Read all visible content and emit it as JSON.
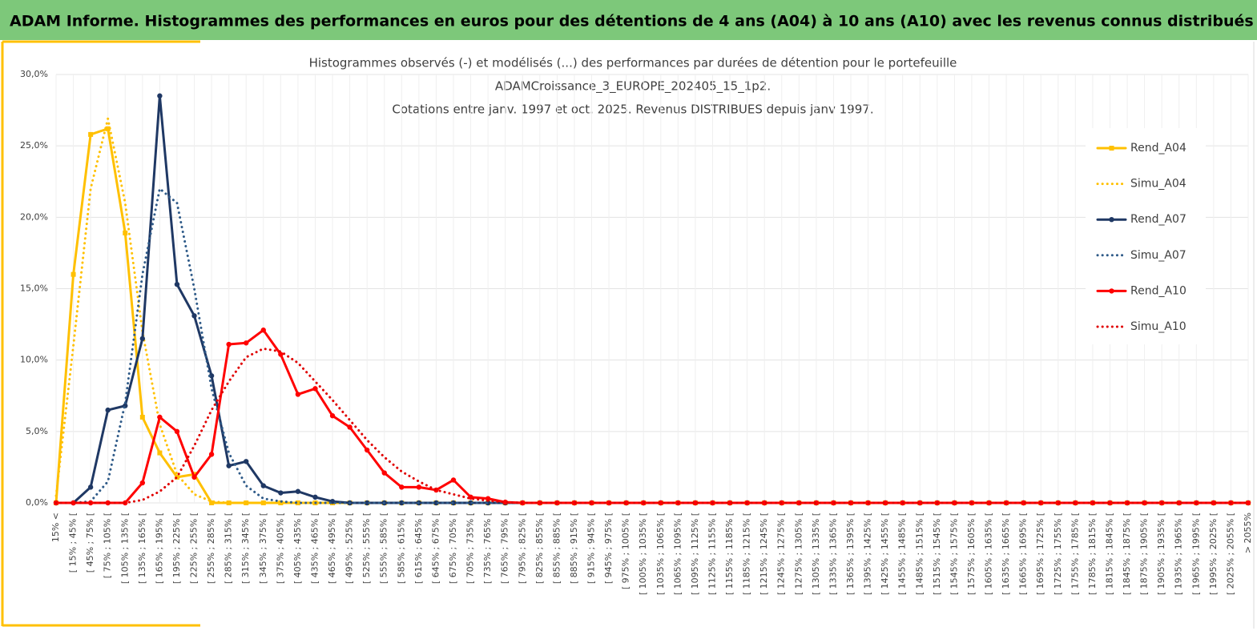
{
  "header": {
    "title": "ADAM Informe. Histogrammes des performances en euros pour des détentions de 4 ans (A04) à 10 ans (A10) avec les revenus connus distribués"
  },
  "chart_data": {
    "type": "line",
    "title": [
      "Histogrammes observés (-) et modélisés (...) des performances par durées de détention pour le portefeuille",
      "ADAMCroissance_3_EUROPE_202405_15_1p2.",
      "Cotations entre janv. 1997 et oct. 2025. Revenus DISTRIBUES depuis janv 1997."
    ],
    "categories": [
      "15% <",
      "[ 15% ; 45% [",
      "[ 45% ; 75% [",
      "[ 75% ; 105% [",
      "[ 105% ; 135% [",
      "[ 135% ; 165% [",
      "[ 165% ; 195% [",
      "[ 195% ; 225% [",
      "[ 225% ; 255% [",
      "[ 255% ; 285% [",
      "[ 285% ; 315% [",
      "[ 315% ; 345% [",
      "[ 345% ; 375% [",
      "[ 375% ; 405% [",
      "[ 405% ; 435% [",
      "[ 435% ; 465% [",
      "[ 465% ; 495% [",
      "[ 495% ; 525% [",
      "[ 525% ; 555% [",
      "[ 555% ; 585% [",
      "[ 585% ; 615% [",
      "[ 615% ; 645% [",
      "[ 645% ; 675% [",
      "[ 675% ; 705% [",
      "[ 705% ; 735% [",
      "[ 735% ; 765% [",
      "[ 765% ; 795% [",
      "[ 795% ; 825% [",
      "[ 825% ; 855% [",
      "[ 855% ; 885% [",
      "[ 885% ; 915% [",
      "[ 915% ; 945% [",
      "[ 945% ; 975% [",
      "[ 975% ; 1005% [",
      "[ 1005% ; 1035% [",
      "[ 1035% ; 1065% [",
      "[ 1065% ; 1095% [",
      "[ 1095% ; 1125% [",
      "[ 1125% ; 1155% [",
      "[ 1155% ; 1185% [",
      "[ 1185% ; 1215% [",
      "[ 1215% ; 1245% [",
      "[ 1245% ; 1275% [",
      "[ 1275% ; 1305% [",
      "[ 1305% ; 1335% [",
      "[ 1335% ; 1365% [",
      "[ 1365% ; 1395% [",
      "[ 1395% ; 1425% [",
      "[ 1425% ; 1455% [",
      "[ 1455% ; 1485% [",
      "[ 1485% ; 1515% [",
      "[ 1515% ; 1545% [",
      "[ 1545% ; 1575% [",
      "[ 1575% ; 1605% [",
      "[ 1605% ; 1635% [",
      "[ 1635% ; 1665% [",
      "[ 1665% ; 1695% [",
      "[ 1695% ; 1725% [",
      "[ 1725% ; 1755% [",
      "[ 1755% ; 1785% [",
      "[ 1785% ; 1815% [",
      "[ 1815% ; 1845% [",
      "[ 1845% ; 1875% [",
      "[ 1875% ; 1905% [",
      "[ 1905% ; 1935% [",
      "[ 1935% ; 1965% [",
      "[ 1965% ; 1995% [",
      "[ 1995% ; 2025% [",
      "[ 2025% ; 2055% [",
      "> 2055%"
    ],
    "ylim": [
      0,
      30
    ],
    "yticks": [
      {
        "value": 0,
        "label": "0,0%"
      },
      {
        "value": 5,
        "label": "5,0%"
      },
      {
        "value": 10,
        "label": "10,0%"
      },
      {
        "value": 15,
        "label": "15,0%"
      },
      {
        "value": 20,
        "label": "20,0%"
      },
      {
        "value": 25,
        "label": "25,0%"
      },
      {
        "value": 30,
        "label": "30,0%"
      }
    ],
    "grid": true,
    "legend": "right",
    "series": [
      {
        "name": "Rend_A04",
        "color": "#ffc000",
        "style": "solid",
        "marker": "square",
        "values": [
          0,
          16,
          25.8,
          26.2,
          18.9,
          6.0,
          3.5,
          1.8,
          2.0,
          0,
          0,
          0,
          0,
          0,
          0,
          0,
          0,
          0,
          0,
          0,
          0,
          0,
          0,
          0,
          0,
          0,
          0,
          0,
          0,
          0,
          0,
          0,
          0,
          0,
          0,
          0,
          0,
          0,
          0,
          0,
          0,
          0,
          0,
          0,
          0,
          0,
          0,
          0,
          0,
          0,
          0,
          0,
          0,
          0,
          0,
          0,
          0,
          0,
          0,
          0,
          0,
          0,
          0,
          0,
          0,
          0,
          0,
          0,
          0,
          0
        ]
      },
      {
        "name": "Simu_A04",
        "color": "#ffc000",
        "style": "dotted",
        "values": [
          0.5,
          11,
          22,
          26.9,
          21,
          12,
          5.5,
          2,
          0.6,
          0.1,
          0,
          0,
          0,
          0,
          0,
          0,
          0,
          0,
          0,
          0,
          0,
          0,
          0,
          0,
          0,
          0,
          0,
          0,
          0,
          0,
          0,
          0,
          0,
          0,
          0,
          0,
          0,
          0,
          0,
          0,
          0,
          0,
          0,
          0,
          0,
          0,
          0,
          0,
          0,
          0,
          0,
          0,
          0,
          0,
          0,
          0,
          0,
          0,
          0,
          0,
          0,
          0,
          0,
          0,
          0,
          0,
          0,
          0,
          0,
          0
        ]
      },
      {
        "name": "Rend_A07",
        "color": "#1f3864",
        "style": "solid",
        "marker": "circle",
        "values": [
          0,
          0,
          1.1,
          6.5,
          6.8,
          11.5,
          28.5,
          15.3,
          13.1,
          8.9,
          2.6,
          2.9,
          1.2,
          0.7,
          0.8,
          0.4,
          0.1,
          0,
          0,
          0,
          0,
          0,
          0,
          0,
          0,
          0,
          0,
          0,
          0,
          0,
          0,
          0,
          0,
          0,
          0,
          0,
          0,
          0,
          0,
          0,
          0,
          0,
          0,
          0,
          0,
          0,
          0,
          0,
          0,
          0,
          0,
          0,
          0,
          0,
          0,
          0,
          0,
          0,
          0,
          0,
          0,
          0,
          0,
          0,
          0,
          0,
          0,
          0,
          0,
          0
        ]
      },
      {
        "name": "Simu_A07",
        "color": "#2e5a88",
        "style": "dotted",
        "values": [
          0,
          0,
          0.1,
          1.5,
          7,
          16,
          22,
          21,
          15,
          8,
          3.5,
          1.2,
          0.3,
          0.1,
          0,
          0,
          0,
          0,
          0,
          0,
          0,
          0,
          0,
          0,
          0,
          0,
          0,
          0,
          0,
          0,
          0,
          0,
          0,
          0,
          0,
          0,
          0,
          0,
          0,
          0,
          0,
          0,
          0,
          0,
          0,
          0,
          0,
          0,
          0,
          0,
          0,
          0,
          0,
          0,
          0,
          0,
          0,
          0,
          0,
          0,
          0,
          0,
          0,
          0,
          0,
          0,
          0,
          0,
          0,
          0
        ]
      },
      {
        "name": "Rend_A10",
        "color": "#ff0000",
        "style": "solid",
        "marker": "circle",
        "values": [
          0,
          0,
          0,
          0,
          0,
          1.4,
          6.0,
          5.0,
          1.8,
          3.4,
          11.1,
          11.2,
          12.1,
          10.4,
          7.6,
          8.0,
          6.1,
          5.3,
          3.7,
          2.1,
          1.1,
          1.1,
          0.9,
          1.6,
          0.4,
          0.3,
          0.05,
          0,
          0,
          0,
          0,
          0,
          0,
          0,
          0,
          0,
          0,
          0,
          0,
          0,
          0,
          0,
          0,
          0,
          0,
          0,
          0,
          0,
          0,
          0,
          0,
          0,
          0,
          0,
          0,
          0,
          0,
          0,
          0,
          0,
          0,
          0,
          0,
          0,
          0,
          0,
          0,
          0,
          0,
          0
        ]
      },
      {
        "name": "Simu_A10",
        "color": "#e00000",
        "style": "dotted",
        "values": [
          0,
          0,
          0,
          0,
          0,
          0.2,
          0.8,
          1.8,
          4,
          6.5,
          8.5,
          10.2,
          10.8,
          10.6,
          9.8,
          8.5,
          7.2,
          5.8,
          4.4,
          3.2,
          2.2,
          1.5,
          0.9,
          0.6,
          0.3,
          0.15,
          0.05,
          0,
          0,
          0,
          0,
          0,
          0,
          0,
          0,
          0,
          0,
          0,
          0,
          0,
          0,
          0,
          0,
          0,
          0,
          0,
          0,
          0,
          0,
          0,
          0,
          0,
          0,
          0,
          0,
          0,
          0,
          0,
          0,
          0,
          0,
          0,
          0,
          0,
          0,
          0,
          0,
          0,
          0,
          0
        ]
      }
    ]
  }
}
